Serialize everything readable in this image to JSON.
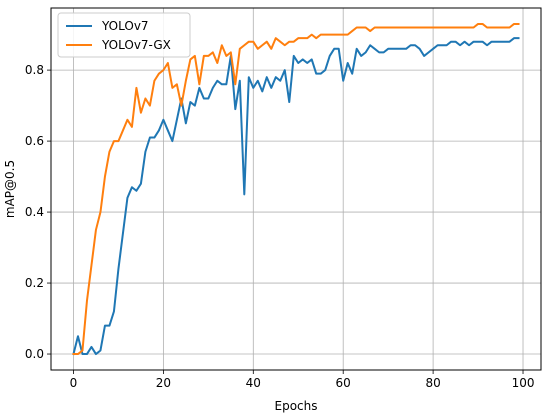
{
  "chart_data": {
    "type": "line",
    "title": "",
    "xlabel": "Epochs",
    "ylabel": "mAP@0.5",
    "xlim": [
      -5,
      104
    ],
    "ylim": [
      -0.045,
      0.975
    ],
    "xticks": [
      0,
      20,
      40,
      60,
      80,
      100
    ],
    "yticks": [
      0.0,
      0.2,
      0.4,
      0.6,
      0.8
    ],
    "ytick_labels": [
      "0.0",
      "0.2",
      "0.4",
      "0.6",
      "0.8"
    ],
    "grid": true,
    "legend_position": "top-left",
    "series": [
      {
        "name": "YOLOv7",
        "color": "#1f77b4",
        "x": [
          0,
          1,
          2,
          3,
          4,
          5,
          6,
          7,
          8,
          9,
          10,
          11,
          12,
          13,
          14,
          15,
          16,
          17,
          18,
          19,
          20,
          21,
          22,
          23,
          24,
          25,
          26,
          27,
          28,
          29,
          30,
          31,
          32,
          33,
          34,
          35,
          36,
          37,
          38,
          39,
          40,
          41,
          42,
          43,
          44,
          45,
          46,
          47,
          48,
          49,
          50,
          51,
          52,
          53,
          54,
          55,
          56,
          57,
          58,
          59,
          60,
          61,
          62,
          63,
          64,
          65,
          66,
          67,
          68,
          69,
          70,
          71,
          72,
          73,
          74,
          75,
          76,
          77,
          78,
          79,
          80,
          81,
          82,
          83,
          84,
          85,
          86,
          87,
          88,
          89,
          90,
          91,
          92,
          93,
          94,
          95,
          96,
          97,
          98,
          99
        ],
        "values": [
          0.0,
          0.05,
          0.0,
          0.0,
          0.02,
          0.0,
          0.01,
          0.08,
          0.08,
          0.12,
          0.24,
          0.34,
          0.44,
          0.47,
          0.46,
          0.48,
          0.57,
          0.61,
          0.61,
          0.63,
          0.66,
          0.63,
          0.6,
          0.66,
          0.72,
          0.65,
          0.71,
          0.7,
          0.75,
          0.72,
          0.72,
          0.75,
          0.77,
          0.76,
          0.76,
          0.84,
          0.69,
          0.77,
          0.45,
          0.78,
          0.75,
          0.77,
          0.74,
          0.78,
          0.75,
          0.78,
          0.77,
          0.8,
          0.71,
          0.84,
          0.82,
          0.83,
          0.82,
          0.83,
          0.79,
          0.79,
          0.8,
          0.84,
          0.86,
          0.86,
          0.77,
          0.82,
          0.79,
          0.86,
          0.84,
          0.85,
          0.87,
          0.86,
          0.85,
          0.85,
          0.86,
          0.86,
          0.86,
          0.86,
          0.86,
          0.87,
          0.87,
          0.86,
          0.84,
          0.85,
          0.86,
          0.87,
          0.87,
          0.87,
          0.88,
          0.88,
          0.87,
          0.88,
          0.87,
          0.88,
          0.88,
          0.88,
          0.87,
          0.88,
          0.88,
          0.88,
          0.88,
          0.88,
          0.89,
          0.89
        ]
      },
      {
        "name": "YOLOv7-GX",
        "color": "#ff7f0e",
        "x": [
          0,
          1,
          2,
          3,
          4,
          5,
          6,
          7,
          8,
          9,
          10,
          11,
          12,
          13,
          14,
          15,
          16,
          17,
          18,
          19,
          20,
          21,
          22,
          23,
          24,
          25,
          26,
          27,
          28,
          29,
          30,
          31,
          32,
          33,
          34,
          35,
          36,
          37,
          38,
          39,
          40,
          41,
          42,
          43,
          44,
          45,
          46,
          47,
          48,
          49,
          50,
          51,
          52,
          53,
          54,
          55,
          56,
          57,
          58,
          59,
          60,
          61,
          62,
          63,
          64,
          65,
          66,
          67,
          68,
          69,
          70,
          71,
          72,
          73,
          74,
          75,
          76,
          77,
          78,
          79,
          80,
          81,
          82,
          83,
          84,
          85,
          86,
          87,
          88,
          89,
          90,
          91,
          92,
          93,
          94,
          95,
          96,
          97,
          98,
          99
        ],
        "values": [
          0.0,
          0.0,
          0.01,
          0.15,
          0.25,
          0.35,
          0.4,
          0.5,
          0.57,
          0.6,
          0.6,
          0.63,
          0.66,
          0.64,
          0.75,
          0.68,
          0.72,
          0.7,
          0.77,
          0.79,
          0.8,
          0.82,
          0.75,
          0.76,
          0.7,
          0.77,
          0.83,
          0.84,
          0.76,
          0.84,
          0.84,
          0.85,
          0.82,
          0.87,
          0.84,
          0.85,
          0.76,
          0.86,
          0.87,
          0.88,
          0.88,
          0.86,
          0.87,
          0.88,
          0.86,
          0.89,
          0.88,
          0.87,
          0.88,
          0.88,
          0.89,
          0.89,
          0.89,
          0.9,
          0.89,
          0.9,
          0.9,
          0.9,
          0.9,
          0.9,
          0.9,
          0.9,
          0.91,
          0.92,
          0.92,
          0.92,
          0.91,
          0.92,
          0.92,
          0.92,
          0.92,
          0.92,
          0.92,
          0.92,
          0.92,
          0.92,
          0.92,
          0.92,
          0.92,
          0.92,
          0.92,
          0.92,
          0.92,
          0.92,
          0.92,
          0.92,
          0.92,
          0.92,
          0.92,
          0.92,
          0.93,
          0.93,
          0.92,
          0.92,
          0.92,
          0.92,
          0.92,
          0.92,
          0.93,
          0.93
        ]
      }
    ]
  }
}
